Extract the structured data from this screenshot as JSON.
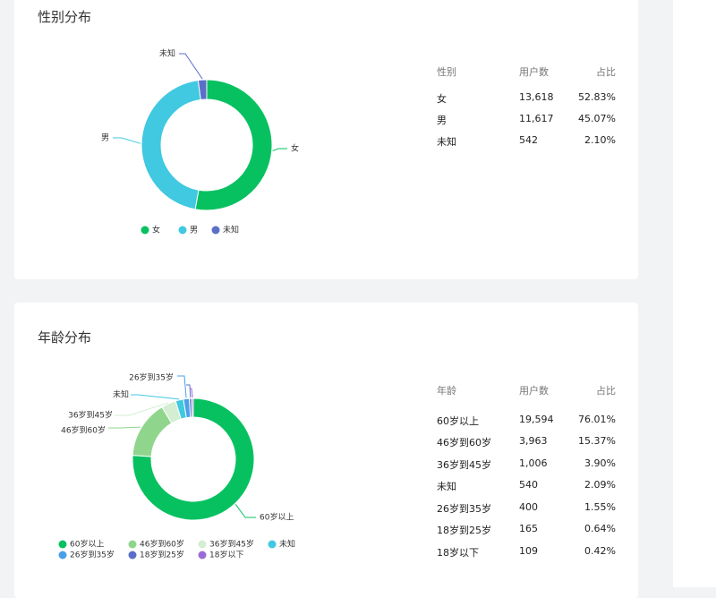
{
  "gender_card": {
    "title": "性别分布",
    "table": {
      "headers": [
        "性别",
        "用户数",
        "占比"
      ],
      "rows": [
        {
          "label": "女",
          "count": "13,618",
          "pct": "52.83%"
        },
        {
          "label": "男",
          "count": "11,617",
          "pct": "45.07%"
        },
        {
          "label": "未知",
          "count": "542",
          "pct": "2.10%"
        }
      ]
    }
  },
  "age_card": {
    "title": "年龄分布",
    "table": {
      "headers": [
        "年龄",
        "用户数",
        "占比"
      ],
      "rows": [
        {
          "label": "60岁以上",
          "count": "19,594",
          "pct": "76.01%"
        },
        {
          "label": "46岁到60岁",
          "count": "3,963",
          "pct": "15.37%"
        },
        {
          "label": "36岁到45岁",
          "count": "1,006",
          "pct": "3.90%"
        },
        {
          "label": "未知",
          "count": "540",
          "pct": "2.09%"
        },
        {
          "label": "26岁到35岁",
          "count": "400",
          "pct": "1.55%"
        },
        {
          "label": "18岁到25岁",
          "count": "165",
          "pct": "0.64%"
        },
        {
          "label": "18岁以下",
          "count": "109",
          "pct": "0.42%"
        }
      ]
    }
  },
  "chart_data": [
    {
      "type": "pie",
      "series": [
        {
          "name": "女",
          "value": 13618,
          "color": "#07c160"
        },
        {
          "name": "男",
          "value": 11617,
          "color": "#40c9e0"
        },
        {
          "name": "未知",
          "value": 542,
          "color": "#5b6fc8"
        }
      ],
      "legend_placement": "bottom"
    },
    {
      "type": "pie",
      "series": [
        {
          "name": "60岁以上",
          "value": 19594,
          "color": "#07c160"
        },
        {
          "name": "46岁到60岁",
          "value": 3963,
          "color": "#8fd68c"
        },
        {
          "name": "36岁到45岁",
          "value": 1006,
          "color": "#d3eed2"
        },
        {
          "name": "未知",
          "value": 540,
          "color": "#40c9e0"
        },
        {
          "name": "26岁到35岁",
          "value": 400,
          "color": "#4a9fe8"
        },
        {
          "name": "18岁到25岁",
          "value": 165,
          "color": "#5b6fc8"
        },
        {
          "name": "18岁以下",
          "value": 109,
          "color": "#9a6bd6"
        }
      ],
      "legend_placement": "bottom-left"
    }
  ]
}
